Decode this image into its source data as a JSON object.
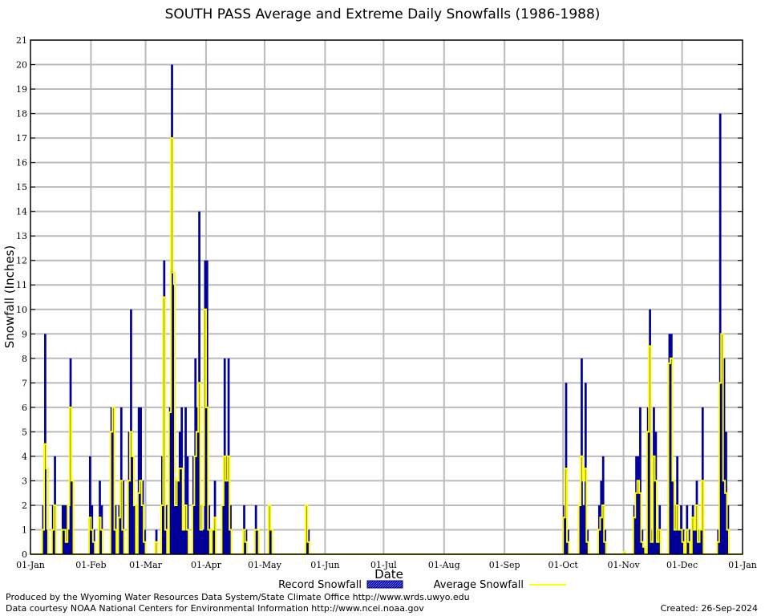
{
  "chart_data": {
    "type": "bar",
    "title": "SOUTH PASS Average and Extreme Daily Snowfalls (1986-1988)",
    "xlabel": "Date",
    "ylabel": "Snowfall (Inches)",
    "ylim": [
      0,
      21
    ],
    "yticks": [
      0,
      1,
      2,
      3,
      4,
      5,
      6,
      7,
      8,
      9,
      10,
      11,
      12,
      13,
      14,
      15,
      16,
      17,
      18,
      19,
      20,
      21
    ],
    "xticks": [
      "01-Jan",
      "01-Feb",
      "01-Mar",
      "01-Apr",
      "01-May",
      "01-Jun",
      "01-Jul",
      "01-Aug",
      "01-Sep",
      "01-Oct",
      "01-Nov",
      "01-Dec",
      "01-Jan"
    ],
    "grid": true,
    "legend_placement": "bottom",
    "colors": {
      "record": "#000099",
      "average": "#ffff00",
      "grid": "#bbbbbb"
    },
    "series": [
      {
        "name": "Record Snowfall",
        "type": "bar"
      },
      {
        "name": "Average Snowfall",
        "type": "line"
      }
    ],
    "points": [
      [
        "01-07",
        2,
        1
      ],
      [
        "01-08",
        9,
        4.5
      ],
      [
        "01-09",
        1,
        3.5
      ],
      [
        "01-12",
        2,
        1
      ],
      [
        "01-13",
        4,
        2
      ],
      [
        "01-17",
        2,
        1
      ],
      [
        "01-18",
        2,
        1
      ],
      [
        "01-19",
        2,
        0.5
      ],
      [
        "01-20",
        1,
        2
      ],
      [
        "01-21",
        8,
        6
      ],
      [
        "01-22",
        3,
        3
      ],
      [
        "01-31",
        4,
        1.5
      ],
      [
        "02-01",
        2,
        1
      ],
      [
        "02-02",
        1,
        0.5
      ],
      [
        "02-05",
        3,
        1.5
      ],
      [
        "02-06",
        2,
        1
      ],
      [
        "02-11",
        6,
        5
      ],
      [
        "02-12",
        6,
        6
      ],
      [
        "02-13",
        2,
        1
      ],
      [
        "02-15",
        2,
        1.5
      ],
      [
        "02-16",
        6,
        3
      ],
      [
        "02-17",
        3,
        1
      ],
      [
        "02-20",
        5,
        3
      ],
      [
        "02-21",
        10,
        5
      ],
      [
        "02-22",
        4,
        4
      ],
      [
        "02-23",
        2,
        2
      ],
      [
        "02-25",
        6,
        2.5
      ],
      [
        "02-26",
        6,
        3
      ],
      [
        "02-27",
        3,
        2
      ],
      [
        "02-28",
        1,
        0.5
      ],
      [
        "03-06",
        1,
        0.5
      ],
      [
        "03-09",
        4,
        2
      ],
      [
        "03-10",
        12,
        10.5
      ],
      [
        "03-11",
        2,
        1
      ],
      [
        "03-13",
        6,
        5.8
      ],
      [
        "03-14",
        20,
        17
      ],
      [
        "03-15",
        11,
        11.5
      ],
      [
        "03-16",
        3,
        2
      ],
      [
        "03-17",
        3,
        3
      ],
      [
        "03-18",
        5,
        3.5
      ],
      [
        "03-19",
        6,
        3.5
      ],
      [
        "03-20",
        1,
        1
      ],
      [
        "03-21",
        6,
        2
      ],
      [
        "03-22",
        4,
        1
      ],
      [
        "03-25",
        4,
        2
      ],
      [
        "03-26",
        8,
        4
      ],
      [
        "03-27",
        6,
        5
      ],
      [
        "03-28",
        14,
        7
      ],
      [
        "03-29",
        2,
        1
      ],
      [
        "03-30",
        1,
        2
      ],
      [
        "03-31",
        12,
        10
      ],
      [
        "04-01",
        12,
        6
      ],
      [
        "04-02",
        2,
        1
      ],
      [
        "04-04",
        1,
        1
      ],
      [
        "04-05",
        3,
        1.5
      ],
      [
        "04-09",
        2,
        2
      ],
      [
        "04-10",
        8,
        4
      ],
      [
        "04-11",
        4,
        3
      ],
      [
        "04-12",
        8,
        4
      ],
      [
        "04-13",
        2,
        1
      ],
      [
        "04-20",
        2,
        1
      ],
      [
        "04-21",
        1,
        0.5
      ],
      [
        "04-26",
        2,
        1
      ],
      [
        "04-27",
        1,
        1
      ],
      [
        "05-03",
        2,
        2
      ],
      [
        "05-04",
        1,
        1
      ],
      [
        "05-22",
        2,
        2
      ],
      [
        "05-23",
        1,
        0.5
      ],
      [
        "10-01",
        2,
        1.5
      ],
      [
        "10-02",
        7,
        3.5
      ],
      [
        "10-03",
        1,
        0.5
      ],
      [
        "10-09",
        2,
        2
      ],
      [
        "10-10",
        8,
        4
      ],
      [
        "10-11",
        2,
        3
      ],
      [
        "10-12",
        7,
        3.5
      ],
      [
        "10-13",
        1,
        0.5
      ],
      [
        "10-19",
        2,
        1
      ],
      [
        "10-20",
        3,
        1.5
      ],
      [
        "10-21",
        4,
        2
      ],
      [
        "10-22",
        1,
        0.5
      ],
      [
        "11-01",
        0.1,
        0.1
      ],
      [
        "11-06",
        2,
        1.5
      ],
      [
        "11-07",
        4,
        2.5
      ],
      [
        "11-08",
        4,
        3
      ],
      [
        "11-09",
        6,
        2.5
      ],
      [
        "11-10",
        1,
        0.5
      ],
      [
        "11-11",
        0.3,
        0.3
      ],
      [
        "11-13",
        6,
        5
      ],
      [
        "11-14",
        10,
        8.5
      ],
      [
        "11-15",
        1,
        0.5
      ],
      [
        "11-16",
        6,
        4
      ],
      [
        "11-17",
        5,
        3
      ],
      [
        "11-18",
        1,
        0.5
      ],
      [
        "11-19",
        2,
        1
      ],
      [
        "11-24",
        9,
        7.8
      ],
      [
        "11-25",
        9,
        8
      ],
      [
        "11-26",
        3,
        3
      ],
      [
        "11-27",
        2,
        1
      ],
      [
        "11-28",
        4,
        2
      ],
      [
        "11-29",
        1,
        1
      ],
      [
        "11-30",
        2,
        1
      ],
      [
        "12-01",
        1,
        0.5
      ],
      [
        "12-03",
        2,
        1
      ],
      [
        "12-04",
        1,
        0.5
      ],
      [
        "12-06",
        2,
        1.5
      ],
      [
        "12-07",
        1,
        1
      ],
      [
        "12-08",
        3,
        2
      ],
      [
        "12-09",
        1,
        0.5
      ],
      [
        "12-10",
        1,
        1
      ],
      [
        "12-11",
        6,
        3
      ],
      [
        "12-19",
        1,
        0.5
      ],
      [
        "12-20",
        18,
        7
      ],
      [
        "12-21",
        9,
        9
      ],
      [
        "12-22",
        8,
        3
      ],
      [
        "12-23",
        5,
        2.5
      ],
      [
        "12-24",
        2,
        1
      ]
    ]
  },
  "footer": {
    "produced_by": "Produced by the Wyoming Water Resources Data System/State Climate Office http://www.wrds.uwyo.edu",
    "courtesy": "Data courtesy NOAA National Centers for Environmental Information http://www.ncei.noaa.gov",
    "created": "Created:  26-Sep-2024"
  }
}
